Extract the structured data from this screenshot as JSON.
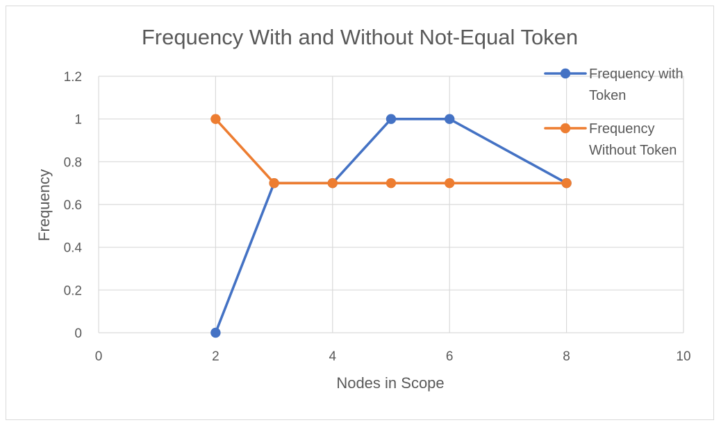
{
  "chart_data": {
    "type": "line",
    "title": "Frequency With and Without Not-Equal Token",
    "xlabel": "Nodes in Scope",
    "ylabel": "Frequency",
    "xlim": [
      0,
      10
    ],
    "ylim": [
      0,
      1.2
    ],
    "x_ticks": [
      0,
      2,
      4,
      6,
      8,
      10
    ],
    "y_ticks": [
      0,
      0.2,
      0.4,
      0.6,
      0.8,
      1,
      1.2
    ],
    "grid": true,
    "legend_position": "top-right",
    "series": [
      {
        "name": "Frequency with Token",
        "legend_lines": [
          "Frequency with",
          "Token"
        ],
        "color": "#4472C4",
        "x": [
          2,
          3,
          4,
          5,
          6,
          8
        ],
        "y": [
          0,
          0.7,
          0.7,
          1,
          1,
          0.7
        ]
      },
      {
        "name": "Frequency Without Token",
        "legend_lines": [
          "Frequency",
          "Without Token"
        ],
        "color": "#ED7D31",
        "x": [
          2,
          3,
          4,
          5,
          6,
          8
        ],
        "y": [
          1,
          0.7,
          0.7,
          0.7,
          0.7,
          0.7
        ]
      }
    ]
  }
}
